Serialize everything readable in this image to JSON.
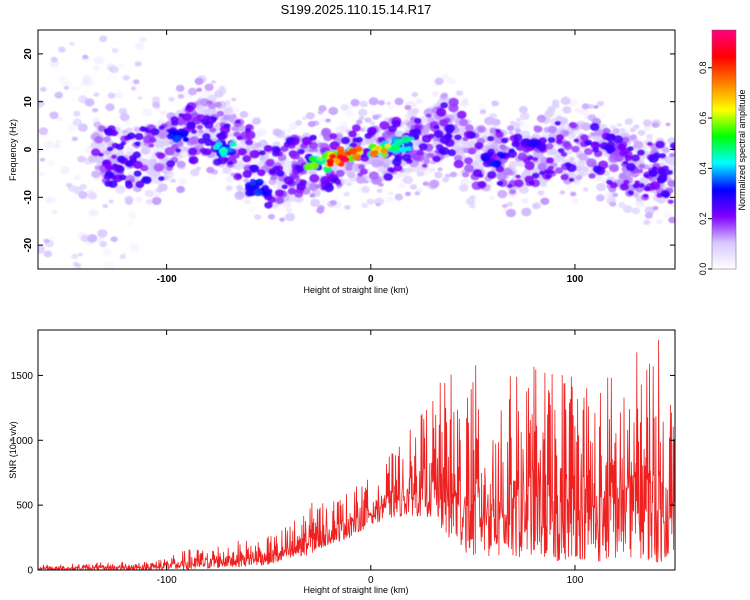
{
  "title": "S199.2025.110.15.14.R17",
  "chart_data": [
    {
      "type": "heatmap",
      "xlabel": "Height of straight line (km)",
      "ylabel": "Frequency (Hz)",
      "xlim": [
        -163,
        149
      ],
      "ylim": [
        -25,
        25
      ],
      "x_ticks": [
        -100,
        0,
        100
      ],
      "y_ticks": [
        -20,
        -10,
        0,
        10,
        20
      ],
      "colorbar": {
        "label": "Normalized spectral amplitude",
        "range": [
          0,
          0.95
        ],
        "ticks": [
          "0.0",
          "0.2",
          "0.4",
          "0.6",
          "0.8"
        ],
        "tick_values": [
          0.0,
          0.2,
          0.4,
          0.6,
          0.8
        ],
        "colormap": [
          "#ffffff",
          "#d8c8ff",
          "#7f00ff",
          "#0000ff",
          "#00ffff",
          "#00ff00",
          "#ffff00",
          "#ff8000",
          "#ff0000",
          "#ff0080"
        ]
      },
      "ridge": {
        "x": [
          -160,
          -140,
          -120,
          -100,
          -90,
          -80,
          -70,
          -60,
          -50,
          -40,
          -30,
          -20,
          -10,
          0,
          10,
          20,
          30,
          40,
          50,
          60,
          70,
          80,
          90,
          100,
          110,
          120,
          130,
          145
        ],
        "frequency": [
          1,
          0,
          -2,
          0,
          3,
          5,
          1,
          -1,
          -6,
          -4,
          -3,
          -2,
          -1,
          -1,
          0,
          1,
          3,
          5,
          -2,
          -1,
          -3,
          -2,
          1,
          -1,
          0,
          -2,
          -4,
          -5
        ]
      },
      "peak_cells": [
        {
          "x": -18,
          "y": -2,
          "value": 0.92
        },
        {
          "x": -10,
          "y": -1,
          "value": 0.88
        },
        {
          "x": 5,
          "y": 0,
          "value": 0.78
        },
        {
          "x": -26,
          "y": -3,
          "value": 0.6
        },
        {
          "x": 15,
          "y": 1,
          "value": 0.5
        },
        {
          "x": -72,
          "y": 0,
          "value": 0.45
        },
        {
          "x": -55,
          "y": -8,
          "value": 0.35
        },
        {
          "x": -95,
          "y": 3,
          "value": 0.35
        },
        {
          "x": 60,
          "y": -2,
          "value": 0.35
        },
        {
          "x": 80,
          "y": 1,
          "value": 0.3
        },
        {
          "x": 120,
          "y": 0,
          "value": 0.3
        },
        {
          "x": 140,
          "y": -5,
          "value": 0.28
        }
      ]
    },
    {
      "type": "line",
      "xlabel": "Height of straight line (km)",
      "ylabel": "SNR (10 * v/v)",
      "xlim": [
        -163,
        149
      ],
      "ylim": [
        0,
        1850
      ],
      "x_ticks": [
        -100,
        0,
        100
      ],
      "y_ticks": [
        0,
        500,
        1000,
        1500
      ],
      "color": "#ee2020",
      "envelope": {
        "x": [
          -163,
          -130,
          -110,
          -90,
          -70,
          -50,
          -40,
          -30,
          -20,
          -10,
          0,
          10,
          20,
          30,
          40,
          50,
          60,
          70,
          80,
          90,
          100,
          110,
          120,
          130,
          140,
          149
        ],
        "upper": [
          40,
          60,
          70,
          160,
          220,
          260,
          360,
          520,
          560,
          620,
          720,
          900,
          1100,
          1400,
          1550,
          1600,
          1580,
          1500,
          1650,
          1500,
          1700,
          1450,
          1600,
          1700,
          1850,
          1400
        ],
        "lower": [
          0,
          0,
          0,
          0,
          20,
          40,
          60,
          120,
          200,
          250,
          350,
          400,
          420,
          400,
          200,
          100,
          100,
          80,
          120,
          50,
          100,
          50,
          80,
          100,
          50,
          100
        ]
      }
    }
  ]
}
